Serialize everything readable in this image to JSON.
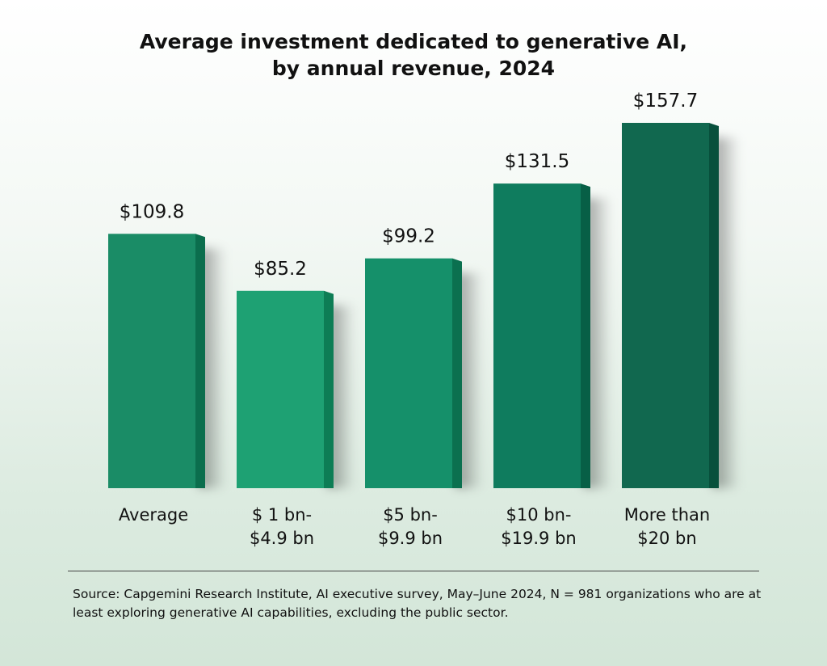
{
  "chart_data": {
    "type": "bar",
    "title": "Average investment dedicated to generative AI, by annual revenue, 2024",
    "title_lines": [
      "Average investment dedicated to generative AI,",
      "by annual revenue, 2024"
    ],
    "categories": [
      [
        "Average"
      ],
      [
        "$ 1 bn-",
        "$4.9 bn"
      ],
      [
        "$5 bn-",
        "$9.9 bn"
      ],
      [
        "$10 bn-",
        "$19.9 bn"
      ],
      [
        "More than",
        "$20 bn"
      ]
    ],
    "values": [
      109.8,
      85.2,
      99.2,
      131.5,
      157.7
    ],
    "value_labels": [
      "$109.8",
      "$85.2",
      "$99.2",
      "$131.5",
      "$157.7"
    ],
    "colors": [
      "#1a8c66",
      "#1ea173",
      "#15906a",
      "#0f7c5e",
      "#11684f"
    ],
    "side_colors": [
      "#0b6e4d",
      "#0d7d55",
      "#0b704f",
      "#075f46",
      "#08503c"
    ],
    "xlabel": "",
    "ylabel": "",
    "ylim": [
      0,
      157.7
    ],
    "grid": false,
    "legend": "none"
  },
  "source": "Source: Capgemini Research Institute, AI executive survey, May–June 2024, N = 981 organizations who are at least exploring generative AI capabilities, excluding the public sector."
}
